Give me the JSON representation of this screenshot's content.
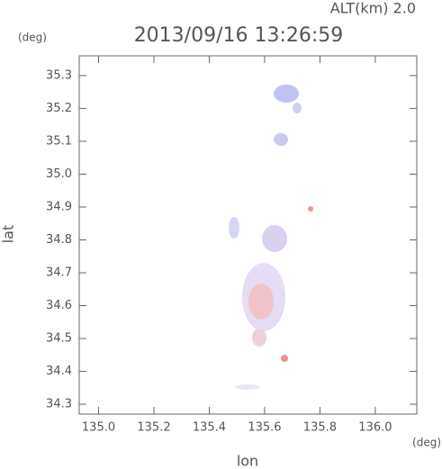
{
  "chart_data": {
    "type": "scatter",
    "title": "2013/09/16 13:26:59",
    "annotation": "ALT(km)  2.0",
    "y_unit": "(deg)",
    "x_unit": "(deg)",
    "xlabel": "lon",
    "ylabel": "lat",
    "xlim": [
      134.93,
      136.15
    ],
    "ylim": [
      34.27,
      35.36
    ],
    "xticks": [
      {
        "value": 135.0,
        "label": "135.0"
      },
      135.2,
      135.4,
      135.6,
      135.8,
      {
        "value": 136.0,
        "label": "136.0"
      }
    ],
    "yticks": [
      34.3,
      34.4,
      34.5,
      34.6,
      34.7,
      34.8,
      34.9,
      {
        "value": 35.0,
        "label": "35.0"
      },
      35.1,
      35.2,
      35.3
    ]
  }
}
